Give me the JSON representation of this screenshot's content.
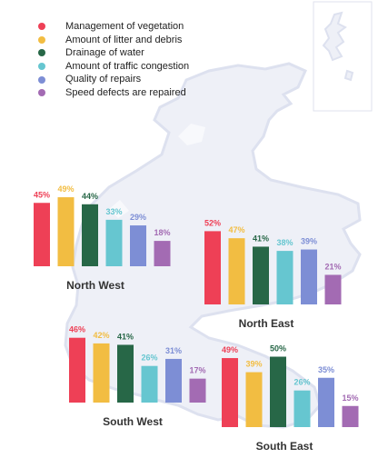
{
  "legend": [
    {
      "label": "Management of vegetation",
      "color": "#ee4056"
    },
    {
      "label": "Amount of litter and debris",
      "color": "#f2bd42"
    },
    {
      "label": "Drainage of water",
      "color": "#276747"
    },
    {
      "label": "Amount of traffic congestion",
      "color": "#66c6d0"
    },
    {
      "label": "Quality of repairs",
      "color": "#7d8ed5"
    },
    {
      "label": "Speed defects are repaired",
      "color": "#a36bb3"
    }
  ],
  "chart_data": [
    {
      "type": "bar",
      "title": "North West",
      "categories": [
        "Management of vegetation",
        "Amount of litter and debris",
        "Drainage of water",
        "Amount of traffic congestion",
        "Quality of repairs",
        "Speed defects are repaired"
      ],
      "values": [
        45,
        49,
        44,
        33,
        29,
        18
      ],
      "value_labels": [
        "45%",
        "49%",
        "44%",
        "33%",
        "29%",
        "18%"
      ],
      "unit": "%",
      "grid": false
    },
    {
      "type": "bar",
      "title": "North East",
      "categories": [
        "Management of vegetation",
        "Amount of litter and debris",
        "Drainage of water",
        "Amount of traffic congestion",
        "Quality of repairs",
        "Speed defects are repaired"
      ],
      "values": [
        52,
        47,
        41,
        38,
        39,
        21
      ],
      "value_labels": [
        "52%",
        "47%",
        "41%",
        "38%",
        "39%",
        "21%"
      ],
      "unit": "%",
      "grid": false
    },
    {
      "type": "bar",
      "title": "South West",
      "categories": [
        "Management of vegetation",
        "Amount of litter and debris",
        "Drainage of water",
        "Amount of traffic congestion",
        "Quality of repairs",
        "Speed defects are repaired"
      ],
      "values": [
        46,
        42,
        41,
        26,
        31,
        17
      ],
      "value_labels": [
        "46%",
        "42%",
        "41%",
        "26%",
        "31%",
        "17%"
      ],
      "unit": "%",
      "grid": false
    },
    {
      "type": "bar",
      "title": "South East",
      "categories": [
        "Management of vegetation",
        "Amount of litter and debris",
        "Drainage of water",
        "Amount of traffic congestion",
        "Quality of repairs",
        "Speed defects are repaired"
      ],
      "values": [
        49,
        39,
        50,
        26,
        35,
        15
      ],
      "value_labels": [
        "49%",
        "39%",
        "50%",
        "26%",
        "35%",
        "15%"
      ],
      "unit": "%",
      "grid": false
    }
  ]
}
